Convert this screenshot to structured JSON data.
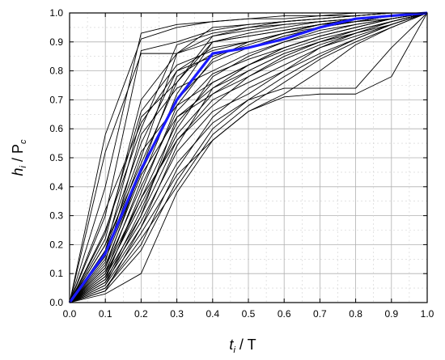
{
  "chart_data": {
    "type": "line",
    "xlabel": {
      "main": "t",
      "sub": "i",
      "rest": " / T"
    },
    "ylabel": {
      "main": "h",
      "sub": "i",
      "mid": " / P",
      "sub2": "c"
    },
    "xlim": [
      0,
      1
    ],
    "ylim": [
      0,
      1
    ],
    "x_ticks": [
      "0.0",
      "0.1",
      "0.2",
      "0.3",
      "0.4",
      "0.5",
      "0.6",
      "0.7",
      "0.8",
      "0.9",
      "1.0"
    ],
    "y_ticks": [
      "0.0",
      "0.1",
      "0.2",
      "0.3",
      "0.4",
      "0.5",
      "0.6",
      "0.7",
      "0.8",
      "0.9",
      "1.0"
    ],
    "grid": true,
    "x": [
      0,
      0.1,
      0.2,
      0.3,
      0.4,
      0.5,
      0.6,
      0.7,
      0.8,
      0.9,
      1.0
    ],
    "colors": {
      "background_series": "#000000",
      "mean_series": "#1a1aff",
      "grid": "#b0b0b0"
    },
    "series": [
      {
        "values": [
          0,
          0.58,
          0.91,
          0.95,
          0.97,
          0.98,
          0.99,
          0.99,
          1.0,
          1.0,
          1.0
        ]
      },
      {
        "values": [
          0,
          0.4,
          0.93,
          0.96,
          0.97,
          0.98,
          0.98,
          0.99,
          0.99,
          1.0,
          1.0
        ]
      },
      {
        "values": [
          0,
          0.52,
          0.86,
          0.86,
          0.92,
          0.95,
          0.97,
          0.98,
          0.99,
          1.0,
          1.0
        ]
      },
      {
        "values": [
          0,
          0.3,
          0.87,
          0.9,
          0.94,
          0.96,
          0.97,
          0.98,
          0.99,
          1.0,
          1.0
        ]
      },
      {
        "values": [
          0,
          0.25,
          0.6,
          0.89,
          0.93,
          0.95,
          0.96,
          0.97,
          0.98,
          0.99,
          1.0
        ]
      },
      {
        "values": [
          0,
          0.22,
          0.7,
          0.86,
          0.9,
          0.92,
          0.94,
          0.96,
          0.98,
          0.99,
          1.0
        ]
      },
      {
        "values": [
          0,
          0.2,
          0.55,
          0.8,
          0.88,
          0.9,
          0.93,
          0.96,
          0.98,
          0.99,
          1.0
        ]
      },
      {
        "values": [
          0,
          0.18,
          0.64,
          0.76,
          0.92,
          0.94,
          0.96,
          0.97,
          0.98,
          0.99,
          1.0
        ]
      },
      {
        "values": [
          0,
          0.16,
          0.5,
          0.86,
          0.95,
          0.96,
          0.97,
          0.98,
          0.99,
          1.0,
          1.0
        ]
      },
      {
        "values": [
          0,
          0.15,
          0.45,
          0.7,
          0.83,
          0.88,
          0.92,
          0.95,
          0.97,
          0.99,
          1.0
        ]
      },
      {
        "values": [
          0,
          0.14,
          0.58,
          0.74,
          0.8,
          0.86,
          0.9,
          0.94,
          0.96,
          0.98,
          1.0
        ]
      },
      {
        "values": [
          0,
          0.12,
          0.4,
          0.66,
          0.79,
          0.84,
          0.88,
          0.92,
          0.95,
          0.98,
          1.0
        ]
      },
      {
        "values": [
          0,
          0.12,
          0.46,
          0.78,
          0.86,
          0.88,
          0.92,
          0.95,
          0.97,
          0.99,
          1.0
        ]
      },
      {
        "values": [
          0,
          0.11,
          0.36,
          0.62,
          0.76,
          0.82,
          0.87,
          0.91,
          0.94,
          0.97,
          1.0
        ]
      },
      {
        "values": [
          0,
          0.1,
          0.42,
          0.72,
          0.9,
          0.93,
          0.95,
          0.97,
          0.98,
          0.99,
          1.0
        ]
      },
      {
        "values": [
          0,
          0.1,
          0.34,
          0.58,
          0.72,
          0.78,
          0.85,
          0.9,
          0.94,
          0.97,
          1.0
        ]
      },
      {
        "values": [
          0,
          0.09,
          0.3,
          0.56,
          0.7,
          0.76,
          0.82,
          0.88,
          0.93,
          0.97,
          1.0
        ]
      },
      {
        "values": [
          0,
          0.08,
          0.38,
          0.68,
          0.84,
          0.9,
          0.93,
          0.95,
          0.97,
          0.99,
          1.0
        ]
      },
      {
        "values": [
          0,
          0.08,
          0.28,
          0.52,
          0.66,
          0.72,
          0.8,
          0.88,
          0.92,
          0.96,
          1.0
        ]
      },
      {
        "values": [
          0,
          0.07,
          0.32,
          0.6,
          0.78,
          0.85,
          0.9,
          0.93,
          0.96,
          0.98,
          1.0
        ]
      },
      {
        "values": [
          0,
          0.07,
          0.26,
          0.48,
          0.62,
          0.7,
          0.74,
          0.74,
          0.74,
          0.88,
          1.0
        ]
      },
      {
        "values": [
          0,
          0.06,
          0.24,
          0.44,
          0.56,
          0.66,
          0.71,
          0.72,
          0.72,
          0.78,
          1.0
        ]
      },
      {
        "values": [
          0,
          0.06,
          0.3,
          0.64,
          0.74,
          0.8,
          0.86,
          0.9,
          0.93,
          0.96,
          1.0
        ]
      },
      {
        "values": [
          0,
          0.05,
          0.22,
          0.4,
          0.58,
          0.68,
          0.76,
          0.84,
          0.9,
          0.95,
          1.0
        ]
      },
      {
        "values": [
          0,
          0.05,
          0.2,
          0.46,
          0.64,
          0.74,
          0.8,
          0.86,
          0.91,
          0.96,
          1.0
        ]
      },
      {
        "values": [
          0,
          0.04,
          0.18,
          0.42,
          0.6,
          0.7,
          0.78,
          0.85,
          0.91,
          0.96,
          1.0
        ]
      },
      {
        "values": [
          0,
          0.04,
          0.26,
          0.54,
          0.74,
          0.82,
          0.88,
          0.92,
          0.95,
          0.98,
          1.0
        ]
      },
      {
        "values": [
          0,
          0.03,
          0.1,
          0.38,
          0.56,
          0.66,
          0.72,
          0.8,
          0.89,
          0.95,
          1.0
        ]
      },
      {
        "values": [
          0,
          0.2,
          0.48,
          0.76,
          0.9,
          0.92,
          0.94,
          0.96,
          0.97,
          0.98,
          1.0
        ]
      },
      {
        "values": [
          0,
          0.24,
          0.66,
          0.82,
          0.87,
          0.9,
          0.93,
          0.96,
          0.98,
          0.99,
          1.0
        ]
      },
      {
        "values": [
          0,
          0.32,
          0.62,
          0.8,
          0.85,
          0.89,
          0.93,
          0.96,
          0.97,
          0.99,
          1.0
        ]
      },
      {
        "values": [
          0,
          0.18,
          0.52,
          0.68,
          0.76,
          0.82,
          0.88,
          0.92,
          0.95,
          0.98,
          1.0
        ]
      },
      {
        "values": [
          0,
          0.13,
          0.44,
          0.64,
          0.72,
          0.8,
          0.86,
          0.9,
          0.94,
          0.97,
          1.0
        ]
      },
      {
        "values": [
          0,
          0.09,
          0.36,
          0.56,
          0.68,
          0.78,
          0.84,
          0.89,
          0.93,
          0.97,
          1.0
        ]
      }
    ],
    "mean_series": {
      "values": [
        0,
        0.17,
        0.46,
        0.7,
        0.86,
        0.88,
        0.91,
        0.95,
        0.98,
        0.99,
        1.0
      ]
    }
  }
}
